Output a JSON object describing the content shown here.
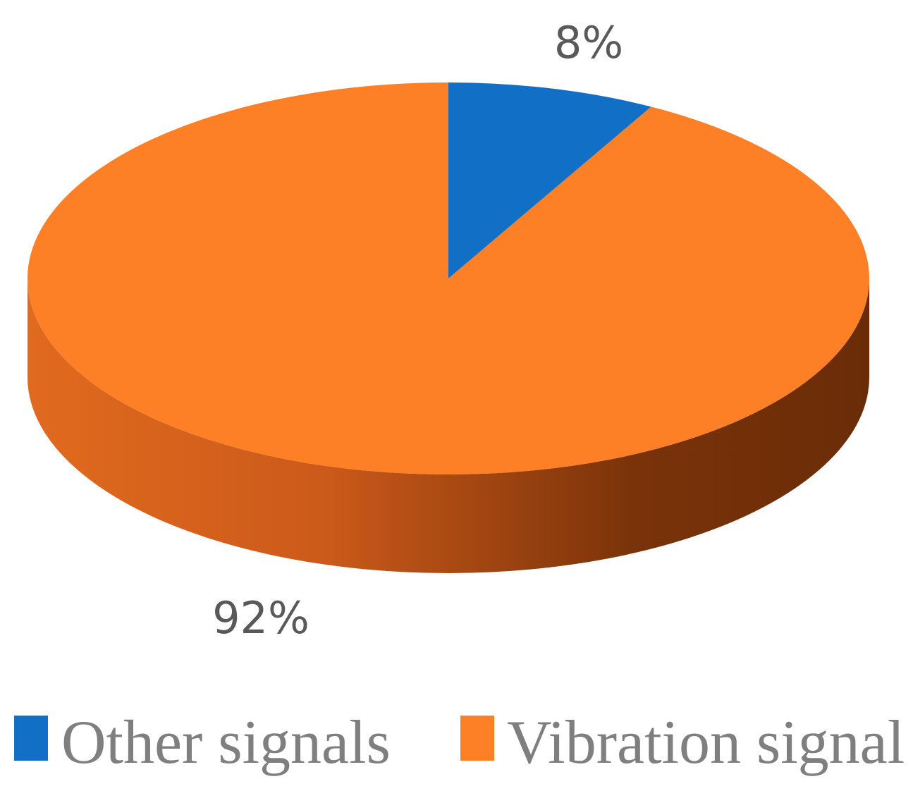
{
  "chart_data": {
    "type": "pie",
    "style": "3d",
    "slices": [
      {
        "name": "Other signals",
        "value": 8,
        "label": "8%",
        "color": "#1170c6"
      },
      {
        "name": "Vibration signal",
        "value": 92,
        "label": "92%",
        "color": "#fd7f26"
      }
    ],
    "legend": {
      "placement": "bottom",
      "items": [
        "Other signals",
        "Vibration signal"
      ]
    },
    "side_colors": {
      "light": "#e06a1e",
      "dark": "#6a2c08"
    }
  }
}
